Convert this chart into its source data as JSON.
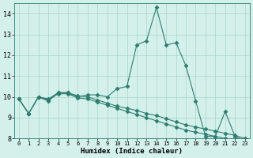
{
  "xlabel": "Humidex (Indice chaleur)",
  "x": [
    0,
    1,
    2,
    3,
    4,
    5,
    6,
    7,
    8,
    9,
    10,
    11,
    12,
    13,
    14,
    15,
    16,
    17,
    18,
    19,
    20,
    21,
    22,
    23
  ],
  "line1": [
    9.9,
    9.2,
    10.0,
    9.8,
    10.2,
    10.2,
    10.0,
    10.1,
    10.1,
    10.0,
    10.4,
    10.5,
    12.5,
    12.7,
    14.3,
    12.5,
    12.6,
    11.5,
    9.8,
    8.1,
    8.1,
    9.3,
    8.1,
    7.9
  ],
  "line2": [
    9.9,
    9.2,
    10.0,
    9.85,
    10.15,
    10.15,
    9.95,
    9.9,
    9.75,
    9.6,
    9.45,
    9.3,
    9.15,
    9.0,
    8.85,
    8.7,
    8.55,
    8.4,
    8.3,
    8.2,
    8.1,
    8.0,
    7.9,
    7.8
  ],
  "line3": [
    9.9,
    9.2,
    10.0,
    9.9,
    10.2,
    10.2,
    10.05,
    10.0,
    9.85,
    9.7,
    9.55,
    9.45,
    9.35,
    9.2,
    9.1,
    8.95,
    8.8,
    8.65,
    8.55,
    8.45,
    8.35,
    8.25,
    8.15,
    8.0
  ],
  "ylim": [
    8,
    14.5
  ],
  "yticks": [
    8,
    9,
    10,
    11,
    12,
    13,
    14
  ],
  "line_color": "#2d7d6f",
  "bg_color": "#d4f0eb",
  "grid_color": "#aad4cc"
}
